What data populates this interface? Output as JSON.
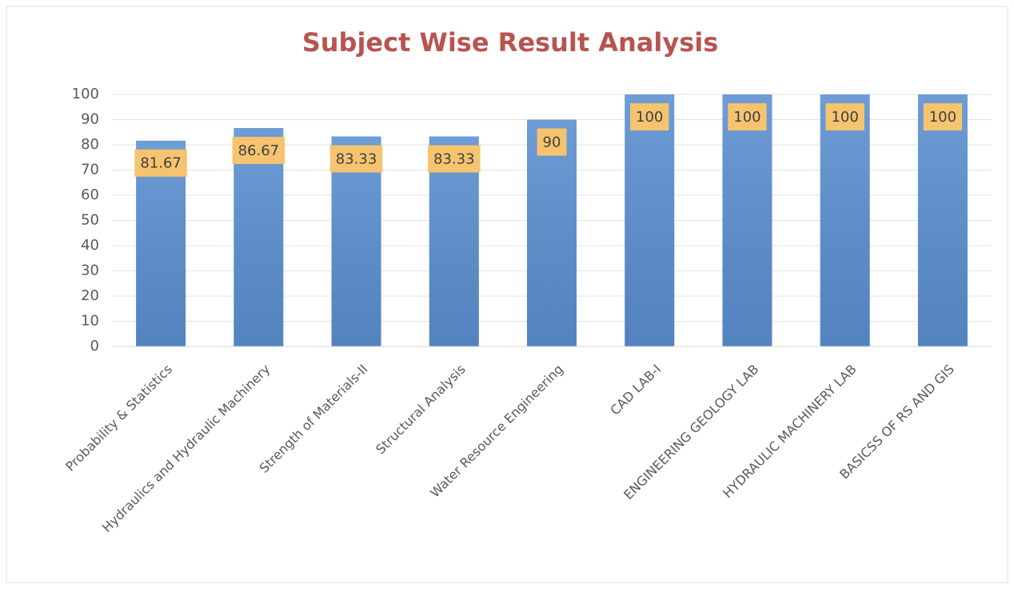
{
  "chart_data": {
    "type": "bar",
    "title": "Subject Wise Result Analysis",
    "categories": [
      "Probability & Statistics",
      "Hydraulics and Hydraulic Machinery",
      "Strength of Materials-II",
      "Structural Analysis",
      "Water Resource Engineering",
      "CAD LAB-I",
      "ENGINEERING GEOLOGY LAB",
      "HYDRAULIC MACHINERY LAB",
      "BASICSS OF RS AND GIS"
    ],
    "values": [
      81.67,
      86.67,
      83.33,
      83.33,
      90,
      100,
      100,
      100,
      100
    ],
    "color": "#5b8fd0",
    "label_color": "#f6c46f",
    "ylim": [
      0,
      100
    ],
    "yticks": [
      0,
      10,
      20,
      30,
      40,
      50,
      60,
      70,
      80,
      90,
      100
    ],
    "grid": true
  }
}
